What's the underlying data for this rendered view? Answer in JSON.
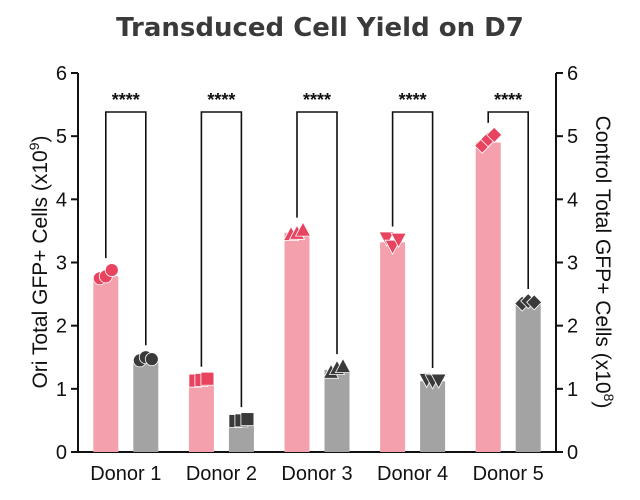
{
  "chart_data": {
    "type": "bar",
    "title": "Transduced Cell Yield on D7",
    "categories": [
      "Donor 1",
      "Donor 2",
      "Donor 3",
      "Donor 4",
      "Donor 5"
    ],
    "y_left": {
      "label": "Ori Total GFP+ Cells (x10",
      "exponent": "9",
      "label_close": ")",
      "ylim": [
        0,
        6
      ],
      "ticks": [
        "0",
        "1",
        "2",
        "3",
        "4",
        "5",
        "6"
      ]
    },
    "y_right": {
      "label": "Control Total GFP+ Cells (x10",
      "exponent": "8",
      "label_close": ")",
      "ylim": [
        0,
        6
      ],
      "ticks": [
        "0",
        "1",
        "2",
        "3",
        "4",
        "5",
        "6"
      ]
    },
    "grid": false,
    "series": [
      {
        "axis": "left",
        "color": "#f4a0ad",
        "marker_color": "#e8435f",
        "values": [
          2.78,
          1.15,
          3.47,
          3.32,
          4.9
        ],
        "points": [
          [
            2.75,
            2.78,
            2.88
          ],
          [
            1.13,
            1.14,
            1.16
          ],
          [
            3.45,
            3.47,
            3.52
          ],
          [
            3.38,
            3.25,
            3.36
          ],
          [
            4.85,
            4.95,
            5.02
          ]
        ],
        "markers": [
          "circle",
          "square",
          "triangle-up",
          "triangle-down",
          "diamond"
        ]
      },
      {
        "axis": "right",
        "color": "#a3a3a3",
        "marker_color": "#3a3a3a",
        "values": [
          1.46,
          0.5,
          1.3,
          1.12,
          2.37
        ],
        "points": [
          [
            1.45,
            1.5,
            1.47
          ],
          [
            0.49,
            0.5,
            0.52
          ],
          [
            1.27,
            1.33,
            1.36
          ],
          [
            1.14,
            1.12,
            1.13
          ],
          [
            2.35,
            2.39,
            2.37
          ]
        ],
        "markers": [
          "circle",
          "square",
          "triangle-up",
          "triangle-down",
          "diamond"
        ]
      }
    ],
    "annotations": [
      {
        "category": "Donor 1",
        "text": "****"
      },
      {
        "category": "Donor 2",
        "text": "****"
      },
      {
        "category": "Donor 3",
        "text": "****"
      },
      {
        "category": "Donor 4",
        "text": "****"
      },
      {
        "category": "Donor 5",
        "text": "****"
      }
    ]
  }
}
